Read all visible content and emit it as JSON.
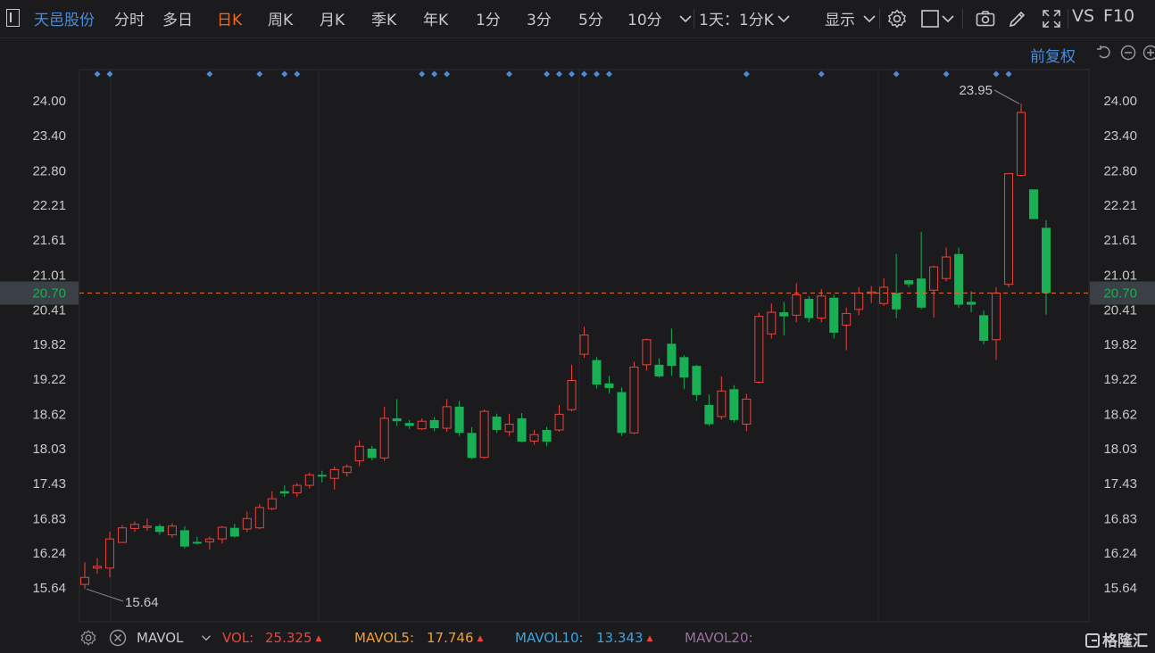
{
  "toolbar": {
    "stock_name": "天邑股份",
    "periods": [
      "分时",
      "多日",
      "日K",
      "周K",
      "月K",
      "季K",
      "年K",
      "1分",
      "3分",
      "5分",
      "10分"
    ],
    "active_period": "日K",
    "multi_period": "1天：1分K",
    "display_label": "显示",
    "vs_label": "VS",
    "f10_label": "F10"
  },
  "adjust_label": "前复权",
  "chart_data": {
    "type": "candlestick",
    "y_ticks": [
      "24.00",
      "23.40",
      "22.80",
      "22.21",
      "21.61",
      "21.01",
      "20.41",
      "19.82",
      "19.22",
      "18.62",
      "18.03",
      "17.43",
      "16.83",
      "16.24",
      "15.64"
    ],
    "ylim": [
      15.64,
      24.0
    ],
    "last_price": "20.70",
    "max_label": "23.95",
    "min_label": "15.64",
    "up_color": "#e8453c",
    "down_color": "#1aaf55",
    "price_line_color": "#e06a3a",
    "marker_color": "#4b8bd9",
    "marker_indices": [
      1,
      2,
      10,
      14,
      16,
      17,
      27,
      28,
      29,
      34,
      37,
      38,
      39,
      40,
      41,
      42,
      53,
      59,
      65,
      69,
      73,
      74
    ],
    "candles": [
      [
        15.7,
        15.82,
        15.62,
        16.08
      ],
      [
        15.98,
        16.01,
        15.88,
        16.15
      ],
      [
        15.98,
        16.48,
        15.82,
        16.6
      ],
      [
        16.42,
        16.67,
        16.42,
        16.72
      ],
      [
        16.66,
        16.73,
        16.6,
        16.78
      ],
      [
        16.7,
        16.7,
        16.62,
        16.83
      ],
      [
        16.7,
        16.6,
        16.55,
        16.74
      ],
      [
        16.55,
        16.7,
        16.5,
        16.75
      ],
      [
        16.63,
        16.35,
        16.32,
        16.7
      ],
      [
        16.43,
        16.4,
        16.38,
        16.52
      ],
      [
        16.43,
        16.48,
        16.3,
        16.52
      ],
      [
        16.48,
        16.68,
        16.4,
        16.7
      ],
      [
        16.67,
        16.52,
        16.5,
        16.74
      ],
      [
        16.65,
        16.83,
        16.6,
        16.95
      ],
      [
        16.67,
        17.02,
        16.65,
        17.08
      ],
      [
        17.0,
        17.17,
        16.97,
        17.3
      ],
      [
        17.3,
        17.26,
        17.2,
        17.4
      ],
      [
        17.27,
        17.4,
        17.2,
        17.44
      ],
      [
        17.4,
        17.58,
        17.35,
        17.62
      ],
      [
        17.58,
        17.55,
        17.45,
        17.65
      ],
      [
        17.52,
        17.67,
        17.33,
        17.72
      ],
      [
        17.62,
        17.72,
        17.55,
        17.76
      ],
      [
        17.82,
        18.07,
        17.73,
        18.17
      ],
      [
        18.03,
        17.87,
        17.83,
        18.08
      ],
      [
        17.87,
        18.55,
        17.82,
        18.75
      ],
      [
        18.55,
        18.5,
        18.42,
        18.88
      ],
      [
        18.47,
        18.42,
        18.37,
        18.52
      ],
      [
        18.37,
        18.5,
        18.35,
        18.55
      ],
      [
        18.52,
        18.38,
        18.33,
        18.57
      ],
      [
        18.38,
        18.75,
        18.32,
        18.88
      ],
      [
        18.75,
        18.3,
        18.25,
        18.85
      ],
      [
        18.3,
        17.87,
        17.85,
        18.4
      ],
      [
        17.88,
        18.67,
        17.86,
        18.7
      ],
      [
        18.58,
        18.35,
        18.3,
        18.63
      ],
      [
        18.32,
        18.45,
        18.25,
        18.63
      ],
      [
        18.55,
        18.15,
        18.14,
        18.64
      ],
      [
        18.16,
        18.27,
        18.1,
        18.35
      ],
      [
        18.35,
        18.15,
        18.07,
        18.4
      ],
      [
        18.35,
        18.62,
        18.32,
        18.78
      ],
      [
        18.7,
        19.2,
        18.67,
        19.47
      ],
      [
        19.65,
        19.98,
        19.59,
        20.12
      ],
      [
        19.55,
        19.13,
        19.06,
        19.6
      ],
      [
        19.15,
        19.07,
        18.98,
        19.28
      ],
      [
        19.0,
        18.3,
        18.25,
        19.08
      ],
      [
        18.3,
        19.43,
        18.28,
        19.52
      ],
      [
        19.47,
        19.9,
        19.37,
        19.92
      ],
      [
        19.47,
        19.27,
        19.25,
        19.58
      ],
      [
        19.83,
        19.45,
        19.28,
        20.09
      ],
      [
        19.6,
        19.25,
        19.05,
        19.63
      ],
      [
        19.45,
        18.95,
        18.85,
        19.47
      ],
      [
        18.78,
        18.45,
        18.42,
        18.96
      ],
      [
        18.58,
        19.02,
        18.53,
        19.27
      ],
      [
        19.05,
        18.52,
        18.48,
        19.12
      ],
      [
        18.45,
        18.88,
        18.33,
        18.97
      ],
      [
        19.17,
        20.3,
        19.15,
        20.36
      ],
      [
        20.0,
        20.37,
        19.92,
        20.52
      ],
      [
        20.37,
        20.3,
        19.97,
        20.55
      ],
      [
        20.32,
        20.67,
        20.2,
        20.87
      ],
      [
        20.6,
        20.27,
        20.2,
        20.65
      ],
      [
        20.27,
        20.65,
        20.2,
        20.77
      ],
      [
        20.62,
        20.02,
        19.92,
        20.67
      ],
      [
        20.15,
        20.35,
        19.72,
        20.45
      ],
      [
        20.42,
        20.7,
        20.32,
        20.8
      ],
      [
        20.7,
        20.72,
        20.53,
        20.82
      ],
      [
        20.52,
        20.8,
        20.48,
        20.95
      ],
      [
        20.7,
        20.42,
        20.27,
        21.37
      ],
      [
        20.92,
        20.85,
        20.8,
        20.93
      ],
      [
        20.95,
        20.45,
        20.42,
        21.75
      ],
      [
        20.75,
        21.15,
        20.28,
        21.17
      ],
      [
        20.95,
        21.32,
        20.9,
        21.48
      ],
      [
        21.37,
        20.5,
        20.45,
        21.48
      ],
      [
        20.55,
        20.5,
        20.37,
        20.73
      ],
      [
        20.32,
        19.88,
        19.82,
        20.4
      ],
      [
        19.9,
        20.7,
        19.55,
        20.8
      ],
      [
        20.85,
        22.75,
        20.8,
        22.75
      ],
      [
        22.72,
        23.8,
        22.7,
        23.95
      ],
      [
        22.48,
        21.97,
        21.97,
        22.48
      ],
      [
        21.82,
        20.7,
        20.33,
        21.95
      ]
    ]
  },
  "volume_bar": {
    "indicator": "MAVOL",
    "items": [
      {
        "label": "VOL:",
        "value": "25.325",
        "color": "#e8453c"
      },
      {
        "label": "MAVOL5:",
        "value": "17.746",
        "color": "#f0a030"
      },
      {
        "label": "MAVOL10:",
        "value": "13.343",
        "color": "#3ba3e0"
      },
      {
        "label": "MAVOL20:",
        "value": "",
        "color": "#9a6fa0"
      }
    ],
    "logo": "格隆汇"
  }
}
